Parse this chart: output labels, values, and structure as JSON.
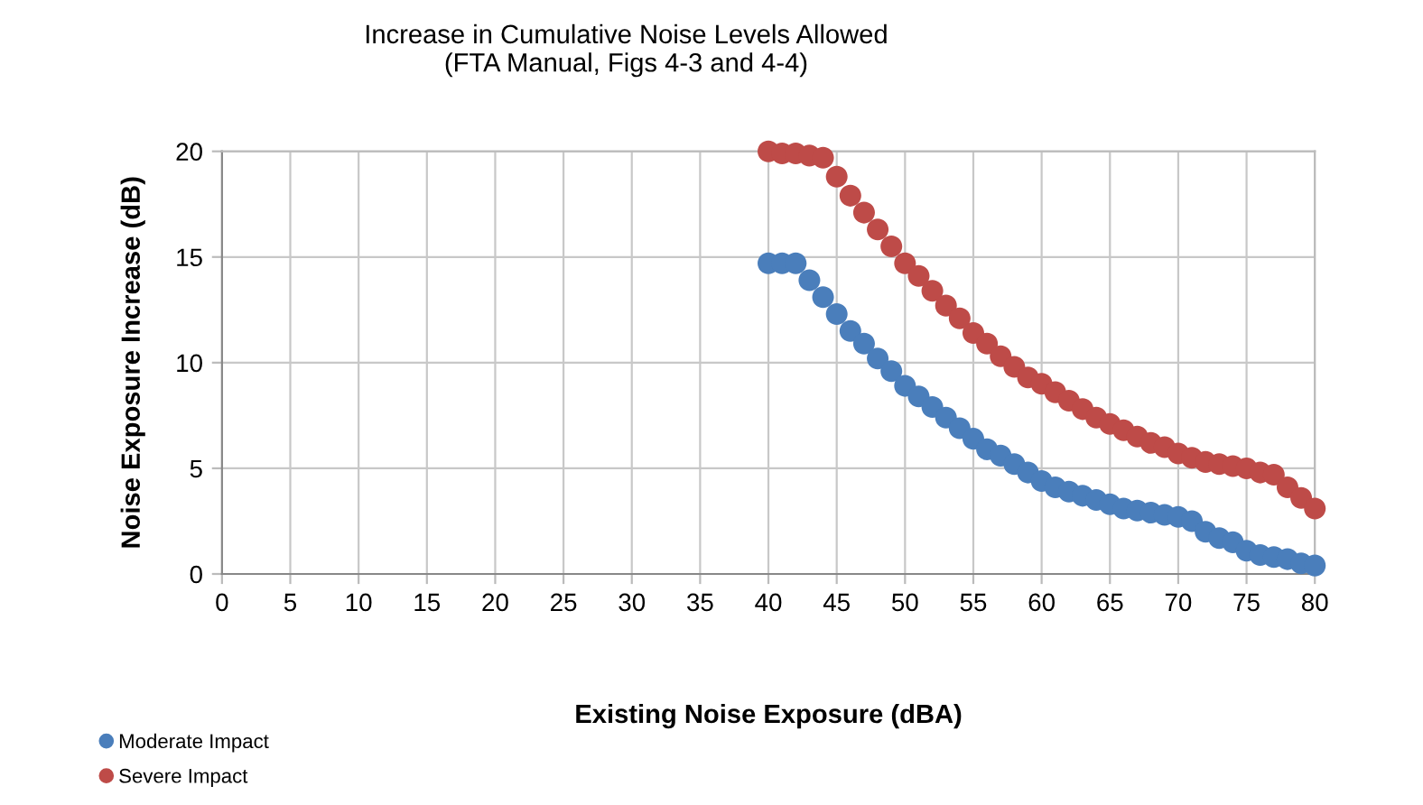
{
  "chart_data": {
    "type": "scatter",
    "title": "Increase in Cumulative Noise Levels Allowed\n(FTA Manual, Figs 4-3 and 4-4)",
    "xlabel": "Existing Noise Exposure (dBA)",
    "ylabel": "Noise Exposure Increase (dB)",
    "xlim": [
      0,
      80
    ],
    "xticks": [
      0,
      5,
      10,
      15,
      20,
      25,
      30,
      35,
      40,
      45,
      50,
      55,
      60,
      65,
      70,
      75,
      80
    ],
    "ylim": [
      0,
      20
    ],
    "yticks": [
      0,
      5,
      10,
      15,
      20
    ],
    "x": [
      40,
      41,
      42,
      43,
      44,
      45,
      46,
      47,
      48,
      49,
      50,
      51,
      52,
      53,
      54,
      55,
      56,
      57,
      58,
      59,
      60,
      61,
      62,
      63,
      64,
      65,
      66,
      67,
      68,
      69,
      70,
      71,
      72,
      73,
      74,
      75,
      76,
      77,
      78,
      79,
      80
    ],
    "series": [
      {
        "name": "Moderate Impact",
        "color": "#4a7ebb",
        "values": [
          14.7,
          14.7,
          14.7,
          13.9,
          13.1,
          12.3,
          11.5,
          10.9,
          10.2,
          9.6,
          8.9,
          8.4,
          7.9,
          7.4,
          6.9,
          6.4,
          5.9,
          5.6,
          5.2,
          4.8,
          4.4,
          4.1,
          3.9,
          3.7,
          3.5,
          3.3,
          3.1,
          3.0,
          2.9,
          2.8,
          2.7,
          2.5,
          2.0,
          1.7,
          1.5,
          1.1,
          0.9,
          0.8,
          0.7,
          0.5,
          0.4
        ]
      },
      {
        "name": "Severe Impact",
        "color": "#be4b48",
        "values": [
          20.0,
          19.9,
          19.9,
          19.8,
          19.7,
          18.8,
          17.9,
          17.1,
          16.3,
          15.5,
          14.7,
          14.1,
          13.4,
          12.7,
          12.1,
          11.4,
          10.9,
          10.3,
          9.8,
          9.3,
          9.0,
          8.6,
          8.2,
          7.8,
          7.4,
          7.1,
          6.8,
          6.5,
          6.2,
          6.0,
          5.7,
          5.5,
          5.3,
          5.2,
          5.1,
          5.0,
          4.8,
          4.7,
          4.1,
          3.6,
          3.1
        ]
      }
    ],
    "grid": true,
    "legend": "bottom left",
    "marker": "circle"
  }
}
